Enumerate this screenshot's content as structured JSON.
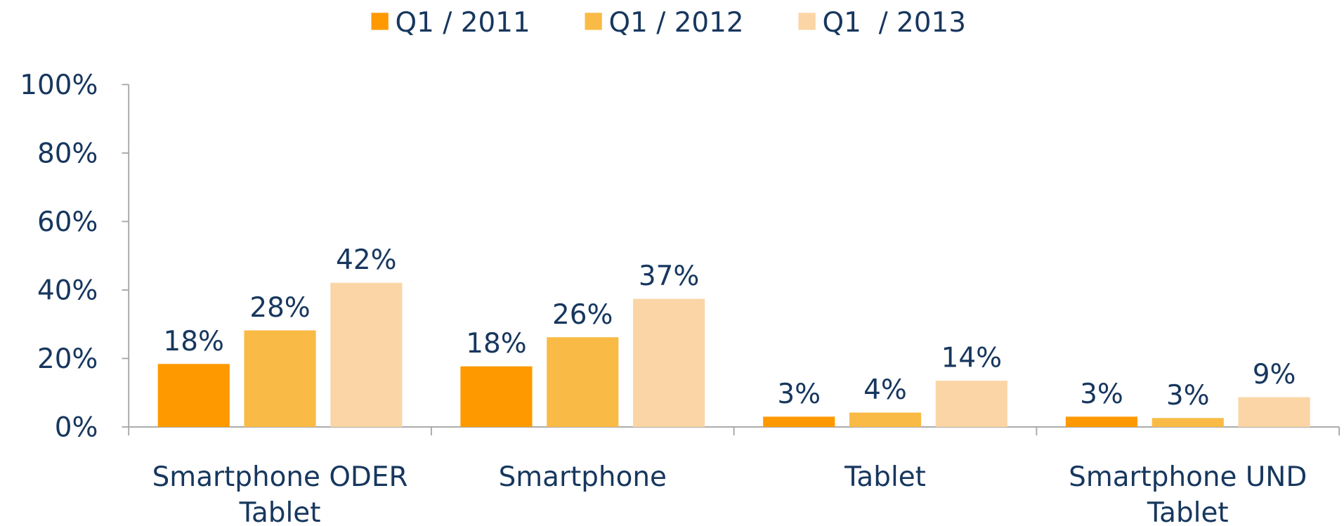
{
  "chart_data": {
    "type": "bar",
    "categories": [
      "Smartphone ODER\nTablet",
      "Smartphone",
      "Tablet",
      "Smartphone UND\nTablet"
    ],
    "series": [
      {
        "name": "Q1 / 2011",
        "color": "#ff9900",
        "values": [
          18.4,
          17.7,
          3.0,
          3.0
        ],
        "value_labels": [
          "18%",
          "18%",
          "3%",
          "3%"
        ]
      },
      {
        "name": "Q1 / 2012",
        "color": "#f9bb45",
        "values": [
          28.2,
          26.2,
          4.2,
          2.6
        ],
        "value_labels": [
          "28%",
          "26%",
          "4%",
          "3%"
        ]
      },
      {
        "name": "Q1  / 2013",
        "color": "#fbd5a5",
        "values": [
          42.1,
          37.4,
          13.5,
          8.7
        ],
        "value_labels": [
          "42%",
          "37%",
          "14%",
          "9%"
        ]
      }
    ],
    "ylim": [
      0,
      100
    ],
    "yticks": [
      {
        "value": 0,
        "label": "0%"
      },
      {
        "value": 20,
        "label": "20%"
      },
      {
        "value": 40,
        "label": "40%"
      },
      {
        "value": 60,
        "label": "60%"
      },
      {
        "value": 80,
        "label": "80%"
      },
      {
        "value": 100,
        "label": "100%"
      }
    ],
    "legend": "top",
    "grid": false
  }
}
